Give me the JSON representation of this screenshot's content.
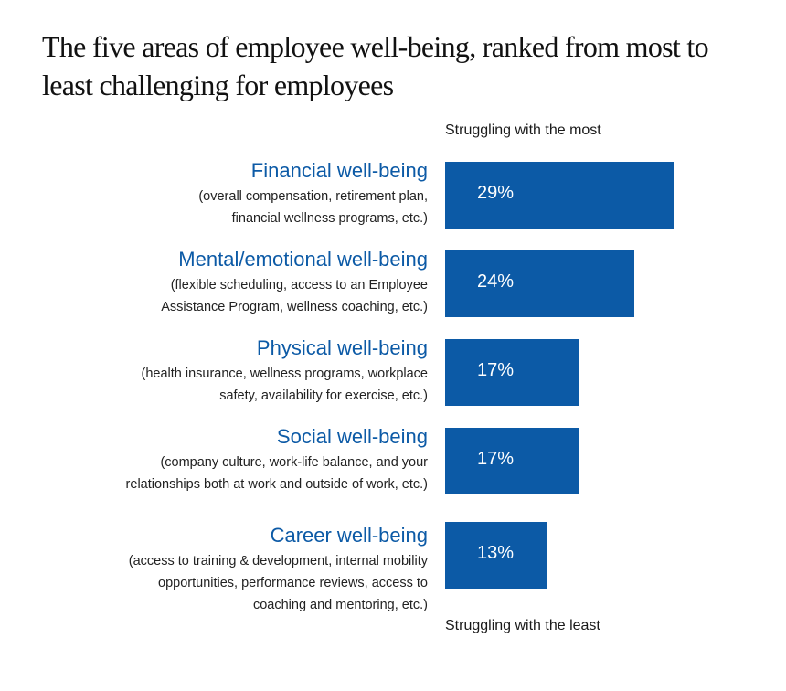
{
  "chart_data": {
    "type": "bar",
    "orientation": "horizontal",
    "title": "The five areas of employee well-being, ranked from most to least challenging for employees",
    "axis_note_top": "Struggling with the most",
    "axis_note_bottom": "Struggling with the least",
    "bar_color": "#0c5aa6",
    "label_color": "#0c5aa6",
    "categories": [
      {
        "name": "Financial well-being",
        "description": [
          "(overall compensation, retirement plan,",
          "financial wellness programs, etc.)"
        ],
        "value": 29,
        "value_label": "29%"
      },
      {
        "name": "Mental/emotional well-being",
        "description": [
          "(flexible scheduling, access to an Employee",
          "Assistance Program, wellness coaching, etc.)"
        ],
        "value": 24,
        "value_label": "24%"
      },
      {
        "name": "Physical well-being",
        "description": [
          "(health insurance, wellness programs, workplace",
          "safety, availability for exercise, etc.)"
        ],
        "value": 17,
        "value_label": "17%"
      },
      {
        "name": "Social well-being",
        "description": [
          "(company culture, work-life balance, and your",
          "relationships both at work and outside of work, etc.)"
        ],
        "value": 17,
        "value_label": "17%"
      },
      {
        "name": "Career well-being",
        "description": [
          "(access to training & development, internal mobility",
          "opportunities, performance reviews, access to",
          "coaching and mentoring, etc.)"
        ],
        "value": 13,
        "value_label": "13%"
      }
    ]
  }
}
